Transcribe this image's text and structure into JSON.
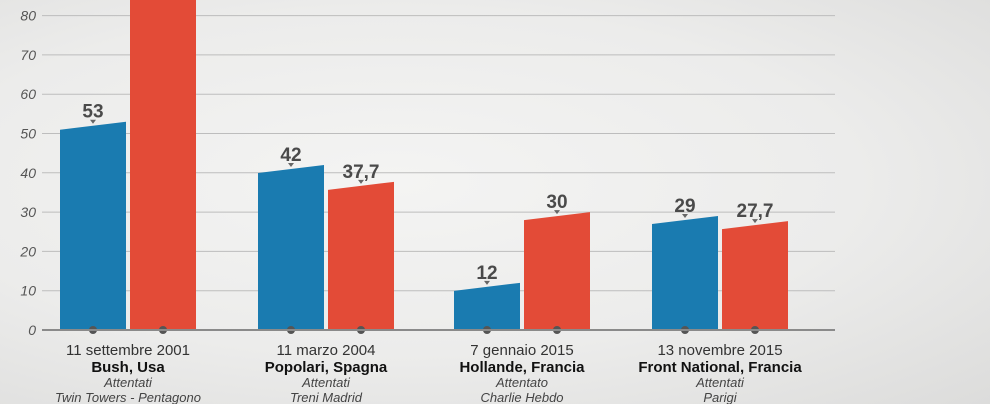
{
  "chart_data": {
    "type": "bar",
    "ylim": [
      0,
      85
    ],
    "yticks": [
      0,
      10,
      20,
      30,
      40,
      50,
      60,
      70,
      80
    ],
    "grid": true,
    "colors": {
      "series_a": "#1a7bb0",
      "series_b": "#e34b37"
    },
    "categories": [
      {
        "date": "11 settembre 2001",
        "name": "Bush, Usa",
        "sub1": "Attentati",
        "sub2": "Twin Towers - Pentagono"
      },
      {
        "date": "11 marzo 2004",
        "name": "Popolari, Spagna",
        "sub1": "Attentati",
        "sub2": "Treni Madrid"
      },
      {
        "date": "7 gennaio 2015",
        "name": "Hollande, Francia",
        "sub1": "Attentato",
        "sub2": "Charlie Hebdo"
      },
      {
        "date": "13 novembre 2015",
        "name": "Front National, Francia",
        "sub1": "Attentati",
        "sub2": "Parigi"
      }
    ],
    "series": [
      {
        "values": [
          53,
          42,
          12,
          29
        ],
        "labels": [
          "53",
          "42",
          "12",
          "29"
        ]
      },
      {
        "values": [
          86,
          37.7,
          30,
          27.7
        ],
        "labels": [
          "",
          "37,7",
          "30",
          "27,7"
        ]
      }
    ]
  }
}
